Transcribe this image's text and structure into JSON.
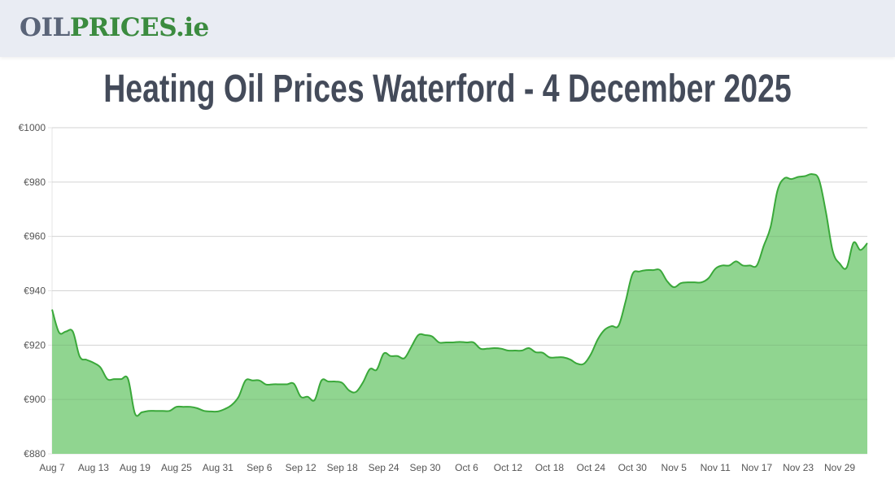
{
  "header": {
    "logo_part1": "OIL",
    "logo_part2": "PRICES.ie"
  },
  "page_title": "Heating Oil Prices Waterford - 4 December 2025",
  "colors": {
    "line": "#3aa83a",
    "fill": "#90d590",
    "grid": "#e5e5e5"
  },
  "chart_data": {
    "type": "area",
    "title": "",
    "xlabel": "",
    "ylabel": "",
    "ylim": [
      880,
      1000
    ],
    "y_ticks": [
      "€880",
      "€900",
      "€920",
      "€940",
      "€960",
      "€980",
      "€1000"
    ],
    "y_tick_values": [
      880,
      900,
      920,
      940,
      960,
      980,
      1000
    ],
    "x_ticks": [
      "Aug 7",
      "Aug 13",
      "Aug 19",
      "Aug 25",
      "Aug 31",
      "Sep 6",
      "Sep 12",
      "Sep 18",
      "Sep 24",
      "Sep 30",
      "Oct 6",
      "Oct 12",
      "Oct 18",
      "Oct 24",
      "Oct 30",
      "Nov 5",
      "Nov 11",
      "Nov 17",
      "Nov 23",
      "Nov 29"
    ],
    "grid": true,
    "legend": "none",
    "x": [
      "2025-08-07",
      "2025-08-08",
      "2025-08-09",
      "2025-08-10",
      "2025-08-11",
      "2025-08-12",
      "2025-08-13",
      "2025-08-14",
      "2025-08-15",
      "2025-08-16",
      "2025-08-17",
      "2025-08-18",
      "2025-08-19",
      "2025-08-20",
      "2025-08-21",
      "2025-08-22",
      "2025-08-23",
      "2025-08-24",
      "2025-08-25",
      "2025-08-26",
      "2025-08-27",
      "2025-08-28",
      "2025-08-29",
      "2025-08-30",
      "2025-08-31",
      "2025-09-01",
      "2025-09-02",
      "2025-09-03",
      "2025-09-04",
      "2025-09-05",
      "2025-09-06",
      "2025-09-07",
      "2025-09-08",
      "2025-09-09",
      "2025-09-10",
      "2025-09-11",
      "2025-09-12",
      "2025-09-13",
      "2025-09-14",
      "2025-09-15",
      "2025-09-16",
      "2025-09-17",
      "2025-09-18",
      "2025-09-19",
      "2025-09-20",
      "2025-09-21",
      "2025-09-22",
      "2025-09-23",
      "2025-09-24",
      "2025-09-25",
      "2025-09-26",
      "2025-09-27",
      "2025-09-28",
      "2025-09-29",
      "2025-09-30",
      "2025-10-01",
      "2025-10-02",
      "2025-10-03",
      "2025-10-04",
      "2025-10-05",
      "2025-10-06",
      "2025-10-07",
      "2025-10-08",
      "2025-10-09",
      "2025-10-10",
      "2025-10-11",
      "2025-10-12",
      "2025-10-13",
      "2025-10-14",
      "2025-10-15",
      "2025-10-16",
      "2025-10-17",
      "2025-10-18",
      "2025-10-19",
      "2025-10-20",
      "2025-10-21",
      "2025-10-22",
      "2025-10-23",
      "2025-10-24",
      "2025-10-25",
      "2025-10-26",
      "2025-10-27",
      "2025-10-28",
      "2025-10-29",
      "2025-10-30",
      "2025-10-31",
      "2025-11-01",
      "2025-11-02",
      "2025-11-03",
      "2025-11-04",
      "2025-11-05",
      "2025-11-06",
      "2025-11-07",
      "2025-11-08",
      "2025-11-09",
      "2025-11-10",
      "2025-11-11",
      "2025-11-12",
      "2025-11-13",
      "2025-11-14",
      "2025-11-15",
      "2025-11-16",
      "2025-11-17",
      "2025-11-18",
      "2025-11-19",
      "2025-11-20",
      "2025-11-21",
      "2025-11-22",
      "2025-11-23",
      "2025-11-24",
      "2025-11-25",
      "2025-11-26",
      "2025-11-27",
      "2025-11-28",
      "2025-11-29",
      "2025-11-30",
      "2025-12-01",
      "2025-12-02",
      "2025-12-03"
    ],
    "values": [
      933.1,
      924.7,
      925,
      925,
      915.8,
      914.6,
      913.5,
      911.8,
      907.5,
      907.5,
      907.5,
      907.5,
      894.8,
      895.3,
      895.8,
      895.8,
      895.8,
      895.8,
      897.3,
      897.3,
      897.3,
      896.8,
      895.8,
      895.6,
      895.6,
      896.5,
      898,
      901,
      907,
      907,
      907,
      905.5,
      905.6,
      905.6,
      905.6,
      905.8,
      901,
      901,
      899.8,
      907,
      906.6,
      906.6,
      906.1,
      903.3,
      902.8,
      906.3,
      911.2,
      911,
      916.9,
      916,
      916,
      915.2,
      919.4,
      923.7,
      923.7,
      923.2,
      921,
      921,
      921,
      921.2,
      921,
      921,
      918.7,
      918.7,
      918.9,
      918.7,
      918,
      918,
      918,
      918.9,
      917.4,
      917.2,
      915.5,
      915.5,
      915.5,
      914.7,
      913.2,
      913.2,
      916.7,
      922.2,
      925.7,
      927,
      927.2,
      936,
      946.1,
      947.1,
      947.6,
      947.6,
      947.6,
      943.6,
      941.3,
      942.8,
      943.1,
      943.1,
      943.1,
      944.6,
      948.1,
      949.3,
      949.3,
      950.8,
      949.3,
      949.3,
      949.3,
      956.5,
      963.5,
      976.9,
      981.4,
      981.1,
      981.9,
      982.2,
      982.9,
      980.9,
      969,
      954.5,
      950,
      948.5,
      957.7,
      955,
      957.5
    ]
  }
}
